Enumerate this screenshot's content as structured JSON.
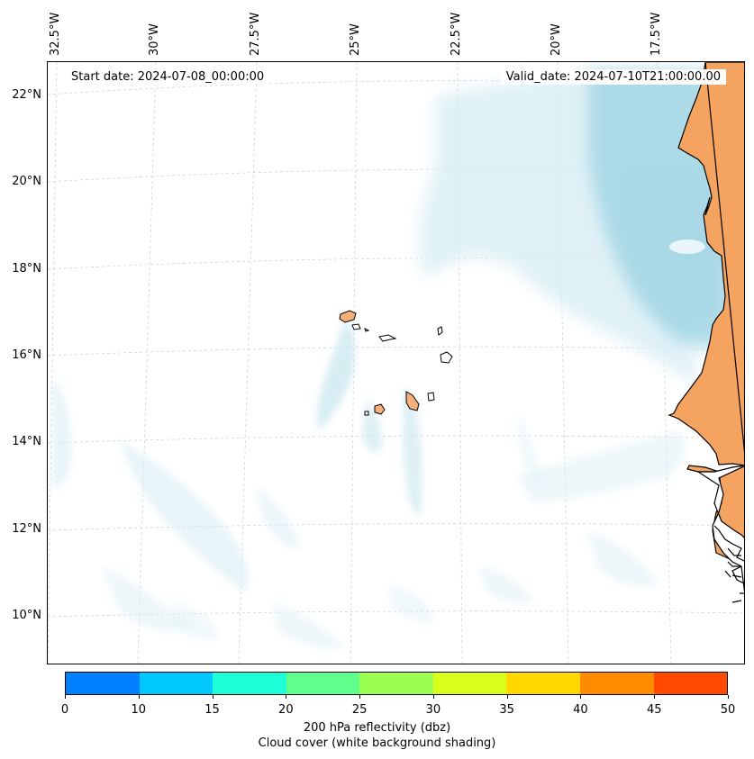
{
  "map": {
    "start_date": "Start date: 2024-07-08_00:00:00",
    "valid_date": "Valid_date: 2024-07-10T21:00:00.00",
    "longitude_labels": [
      "32.5°W",
      "30°W",
      "27.5°W",
      "25°W",
      "22.5°W",
      "20°W",
      "17.5°W"
    ],
    "latitude_labels": [
      "22°N",
      "20°N",
      "18°N",
      "16°N",
      "14°N",
      "12°N",
      "10°N"
    ],
    "colors": {
      "land": "#f4a460",
      "cloud_high": "#a8d8e6",
      "cloud_low": "#d8eef4",
      "coast": "#000000",
      "grid": "#cccccc"
    }
  },
  "colorbar": {
    "ticks": [
      "0",
      "10",
      "15",
      "20",
      "25",
      "30",
      "35",
      "40",
      "45",
      "50"
    ],
    "colors": [
      "#0080ff",
      "#00c8ff",
      "#1effd8",
      "#5fff8c",
      "#9aff50",
      "#d8ff1a",
      "#ffd800",
      "#ff8c00",
      "#ff4a00"
    ],
    "label_1": "200 hPa reflectivity (dbz)",
    "label_2": "Cloud cover (white background shading)"
  }
}
